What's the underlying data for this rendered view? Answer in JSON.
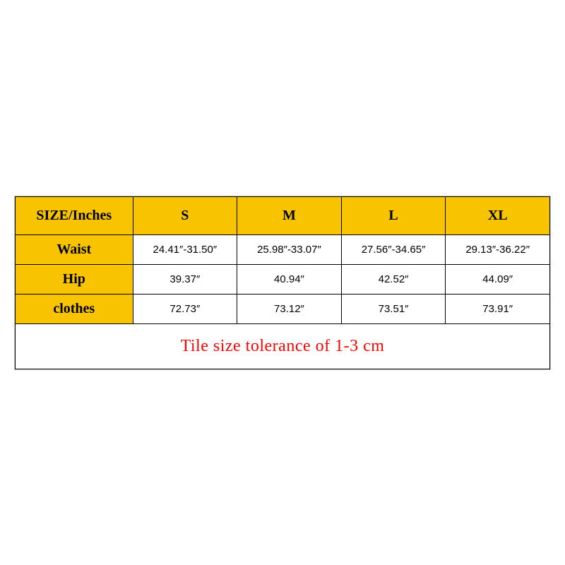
{
  "table": {
    "header_bg": "#f8c300",
    "cell_bg": "#ffffff",
    "border_color": "#000000",
    "outer_border_color": "#c8c8c8",
    "note_color": "#ff0000",
    "header_fontsize": 20,
    "rowlabel_fontsize": 20,
    "cell_fontsize": 15,
    "note_fontsize": 24,
    "corner_label": "SIZE/Inches",
    "columns": [
      "S",
      "M",
      "L",
      "XL"
    ],
    "rows": [
      {
        "label": "Waist",
        "values": [
          "24.41″-31.50″",
          "25.98″-33.07″",
          "27.56″-34.65″",
          "29.13″-36.22″"
        ]
      },
      {
        "label": "Hip",
        "values": [
          "39.37″",
          "40.94″",
          "42.52″",
          "44.09″"
        ]
      },
      {
        "label": "clothes",
        "values": [
          "72.73″",
          "73.12″",
          "73.51″",
          "73.91″"
        ]
      }
    ],
    "note": "Tile size tolerance of 1-3 cm"
  }
}
